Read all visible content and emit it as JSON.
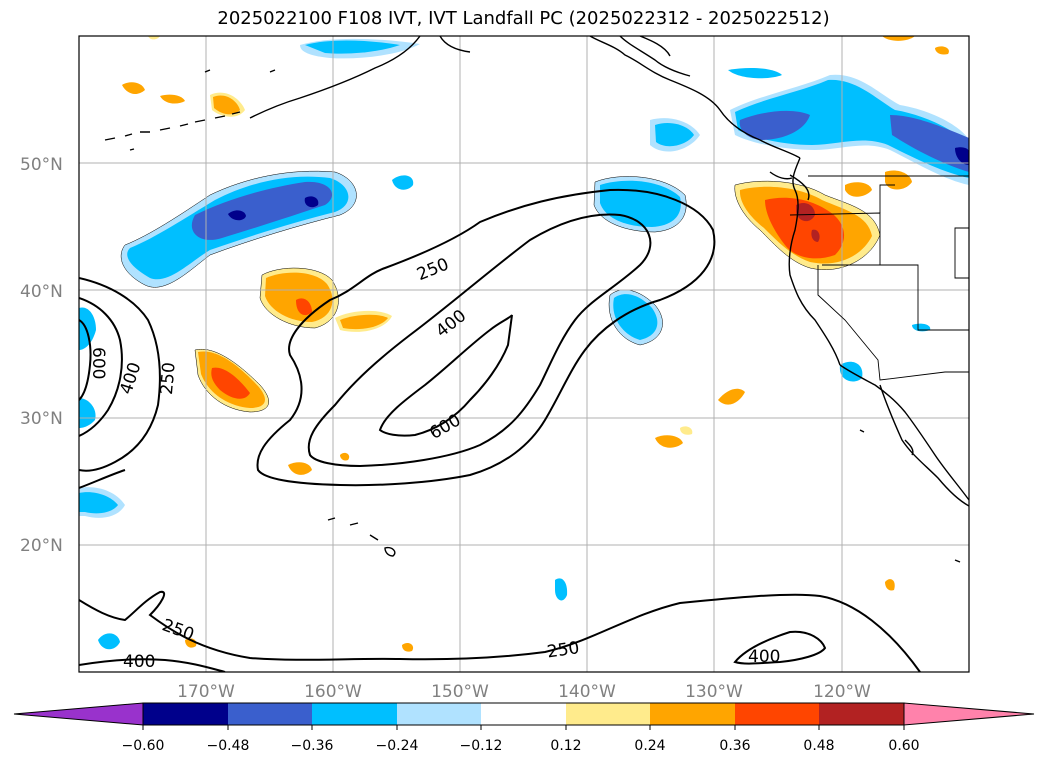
{
  "title": "2025022100 F108 IVT, IVT Landfall PC (2025022312 - 2025022512)",
  "axes": {
    "lon_ticks": [
      "170°W",
      "160°W",
      "150°W",
      "140°W",
      "130°W",
      "120°W"
    ],
    "lat_ticks": [
      "50°N",
      "40°N",
      "30°N",
      "20°N"
    ],
    "lon_range": [
      -180,
      -110
    ],
    "lat_range": [
      10,
      60
    ],
    "grid": true
  },
  "colorbar": {
    "ticks": [
      "−0.60",
      "−0.48",
      "−0.36",
      "−0.24",
      "−0.12",
      "0.12",
      "0.24",
      "0.36",
      "0.48",
      "0.60"
    ],
    "colors": [
      "#9932cc",
      "#00008b",
      "#3a5fcd",
      "#00bfff",
      "#b0e2ff",
      "#ffffff",
      "#ffeb8c",
      "#ffa500",
      "#ff4500",
      "#b22222",
      "#ff82ab"
    ],
    "extend": "both"
  },
  "ivt_contours": {
    "labels": [
      "250",
      "400",
      "600",
      "600",
      "400",
      "250",
      "250",
      "400",
      "250",
      "400"
    ]
  },
  "colors": {
    "grid": "#b0b0b0",
    "tick_text": "#808080"
  }
}
